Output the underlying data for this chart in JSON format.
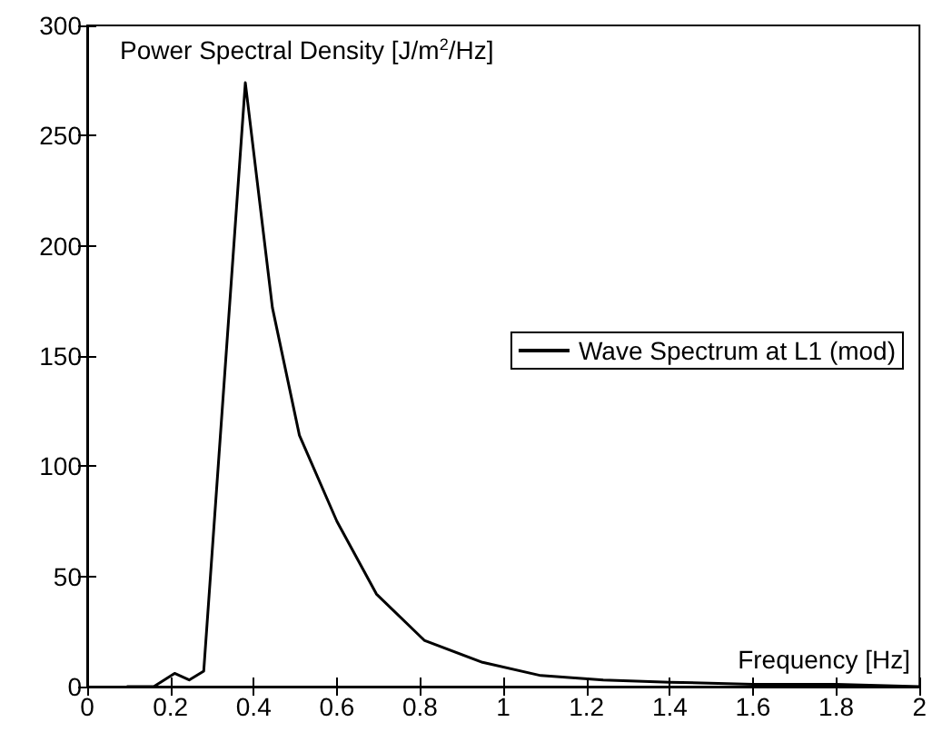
{
  "chart_data": {
    "type": "line",
    "xlabel": "Frequency [Hz]",
    "ylabel": "Power Spectral Density [J/m$^{2}$/Hz]",
    "series": [
      {
        "name": "Wave Spectrum at L1 (mod)",
        "color": "#000000",
        "x": [
          0.095,
          0.16,
          0.21,
          0.245,
          0.28,
          0.38,
          0.445,
          0.51,
          0.6,
          0.695,
          0.81,
          0.95,
          1.09,
          1.24,
          1.4,
          1.6,
          1.8,
          2
        ],
        "values": [
          0,
          0,
          6,
          3,
          7,
          274,
          172,
          114,
          75,
          42,
          21,
          11,
          5,
          3,
          2,
          1,
          1,
          0
        ]
      }
    ],
    "xlim": [
      0,
      2
    ],
    "xticks": [
      0,
      0.2,
      0.4,
      0.6,
      0.8,
      1,
      1.2,
      1.4,
      1.6,
      1.8,
      2
    ],
    "ylim": [
      0,
      300
    ],
    "yticks": [
      0,
      50,
      100,
      150,
      200,
      250,
      300
    ],
    "grid": false,
    "legend": "right",
    "marker": "none",
    "line_style": "solid"
  }
}
